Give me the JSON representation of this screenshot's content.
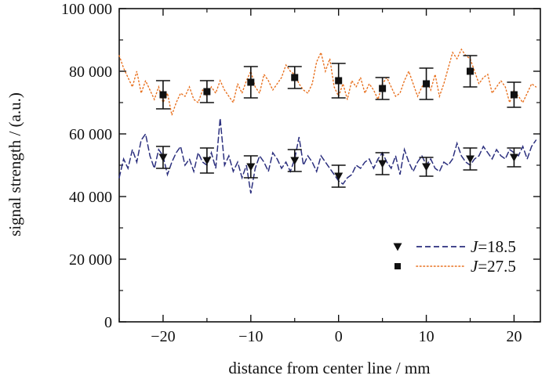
{
  "chart_data": {
    "type": "scatter",
    "title": "",
    "xlabel": "distance from center line / mm",
    "ylabel": "signal strength / (a.u.)",
    "xlim": [
      -25,
      23
    ],
    "ylim": [
      0,
      100000
    ],
    "xticks": [
      -20,
      -10,
      0,
      10,
      20
    ],
    "xtick_labels": [
      "−20",
      "−10",
      "0",
      "10",
      "20"
    ],
    "yticks": [
      0,
      20000,
      40000,
      60000,
      80000,
      100000
    ],
    "ytick_labels": [
      "0",
      "20 000",
      "40 000",
      "60 000",
      "80 000",
      "100 000"
    ],
    "legend_position": "bottom-right",
    "series": [
      {
        "name": "J=18.5",
        "legend_italic": "J",
        "legend_rest": "=18.5",
        "marker": "triangle-down",
        "line_style": "dashed",
        "color": "#2b2f7e",
        "points": {
          "x": [
            -20,
            -15,
            -10,
            -5,
            0,
            5,
            10,
            15,
            20
          ],
          "y": [
            52500,
            51500,
            49500,
            51500,
            46500,
            50500,
            49500,
            52000,
            52500
          ],
          "err": [
            3500,
            4000,
            3500,
            3500,
            3500,
            3500,
            3000,
            3500,
            3000
          ]
        },
        "trace": {
          "x": [
            -25,
            -24.5,
            -24,
            -23.5,
            -23,
            -22.5,
            -22,
            -21.5,
            -21,
            -20.5,
            -20,
            -19.5,
            -19,
            -18.5,
            -18,
            -17.5,
            -17,
            -16.5,
            -16,
            -15.5,
            -15,
            -14.5,
            -14,
            -13.5,
            -13,
            -12.5,
            -12,
            -11.5,
            -11,
            -10.5,
            -10,
            -9.5,
            -9,
            -8.5,
            -8,
            -7.5,
            -7,
            -6.5,
            -6,
            -5.5,
            -5,
            -4.5,
            -4,
            -3.5,
            -3,
            -2.5,
            -2,
            -1.5,
            -1,
            -0.5,
            0,
            0.5,
            1,
            1.5,
            2,
            2.5,
            3,
            3.5,
            4,
            4.5,
            5,
            5.5,
            6,
            6.5,
            7,
            7.5,
            8,
            8.5,
            9,
            9.5,
            10,
            10.5,
            11,
            11.5,
            12,
            12.5,
            13,
            13.5,
            14,
            14.5,
            15,
            15.5,
            16,
            16.5,
            17,
            17.5,
            18,
            18.5,
            19,
            19.5,
            20,
            20.5,
            21,
            21.5,
            22,
            22.5
          ],
          "y": [
            46000,
            52000,
            49000,
            55000,
            51000,
            58000,
            60000,
            53000,
            49000,
            55000,
            53000,
            47000,
            51000,
            54000,
            56000,
            50000,
            52000,
            48000,
            54000,
            51000,
            50000,
            54000,
            49000,
            65000,
            50000,
            53000,
            48000,
            51000,
            46000,
            50000,
            41000,
            49000,
            53000,
            51000,
            48000,
            54000,
            52000,
            49000,
            51000,
            48000,
            52000,
            59000,
            50000,
            53000,
            51000,
            48000,
            53000,
            51000,
            49000,
            47000,
            45000,
            44000,
            46000,
            47000,
            50000,
            49000,
            51000,
            52000,
            49000,
            52000,
            54000,
            51000,
            49000,
            53000,
            47000,
            55000,
            51000,
            48000,
            51000,
            53000,
            50000,
            52000,
            49000,
            48000,
            51000,
            50000,
            52000,
            57000,
            53000,
            51000,
            50000,
            52000,
            53000,
            56000,
            54000,
            52000,
            55000,
            53000,
            52000,
            55000,
            54000,
            53000,
            56000,
            52000,
            56000,
            58000
          ]
        }
      },
      {
        "name": "J=27.5",
        "legend_italic": "J",
        "legend_rest": "=27.5",
        "marker": "square",
        "line_style": "dotted",
        "color": "#e8701e",
        "points": {
          "x": [
            -20,
            -15,
            -10,
            -5,
            0,
            5,
            10,
            15,
            20
          ],
          "y": [
            72500,
            73500,
            76500,
            78000,
            77000,
            74500,
            76000,
            80000,
            72500
          ],
          "err": [
            4500,
            3500,
            5000,
            3500,
            5500,
            3500,
            5000,
            5000,
            4000
          ]
        },
        "trace": {
          "x": [
            -25,
            -24.5,
            -24,
            -23.5,
            -23,
            -22.5,
            -22,
            -21.5,
            -21,
            -20.5,
            -20,
            -19.5,
            -19,
            -18.5,
            -18,
            -17.5,
            -17,
            -16.5,
            -16,
            -15.5,
            -15,
            -14.5,
            -14,
            -13.5,
            -13,
            -12.5,
            -12,
            -11.5,
            -11,
            -10.5,
            -10,
            -9.5,
            -9,
            -8.5,
            -8,
            -7.5,
            -7,
            -6.5,
            -6,
            -5.5,
            -5,
            -4.5,
            -4,
            -3.5,
            -3,
            -2.5,
            -2,
            -1.5,
            -1,
            -0.5,
            0,
            0.5,
            1,
            1.5,
            2,
            2.5,
            3,
            3.5,
            4,
            4.5,
            5,
            5.5,
            6,
            6.5,
            7,
            7.5,
            8,
            8.5,
            9,
            9.5,
            10,
            10.5,
            11,
            11.5,
            12,
            12.5,
            13,
            13.5,
            14,
            14.5,
            15,
            15.5,
            16,
            16.5,
            17,
            17.5,
            18,
            18.5,
            19,
            19.5,
            20,
            20.5,
            21,
            21.5,
            22,
            22.5
          ],
          "y": [
            85000,
            81000,
            78000,
            75000,
            80000,
            73000,
            77000,
            74000,
            71000,
            75000,
            70000,
            73000,
            66000,
            70000,
            73000,
            72000,
            75000,
            71000,
            70000,
            74000,
            72000,
            75000,
            73000,
            77000,
            74000,
            72000,
            70000,
            76000,
            73000,
            77000,
            80000,
            75000,
            73000,
            79000,
            77000,
            74000,
            76000,
            78000,
            82000,
            80000,
            79000,
            76000,
            74000,
            73000,
            76000,
            83000,
            86000,
            80000,
            84000,
            75000,
            72000,
            76000,
            71000,
            77000,
            75000,
            78000,
            73000,
            76000,
            74000,
            71000,
            76000,
            78000,
            75000,
            72000,
            73000,
            77000,
            80000,
            76000,
            72000,
            75000,
            77000,
            74000,
            79000,
            72000,
            76000,
            81000,
            86000,
            84000,
            87000,
            85000,
            84000,
            80000,
            76000,
            78000,
            79000,
            73000,
            75000,
            77000,
            75000,
            70000,
            74000,
            72000,
            70000,
            73000,
            76000,
            75000
          ]
        }
      }
    ]
  }
}
